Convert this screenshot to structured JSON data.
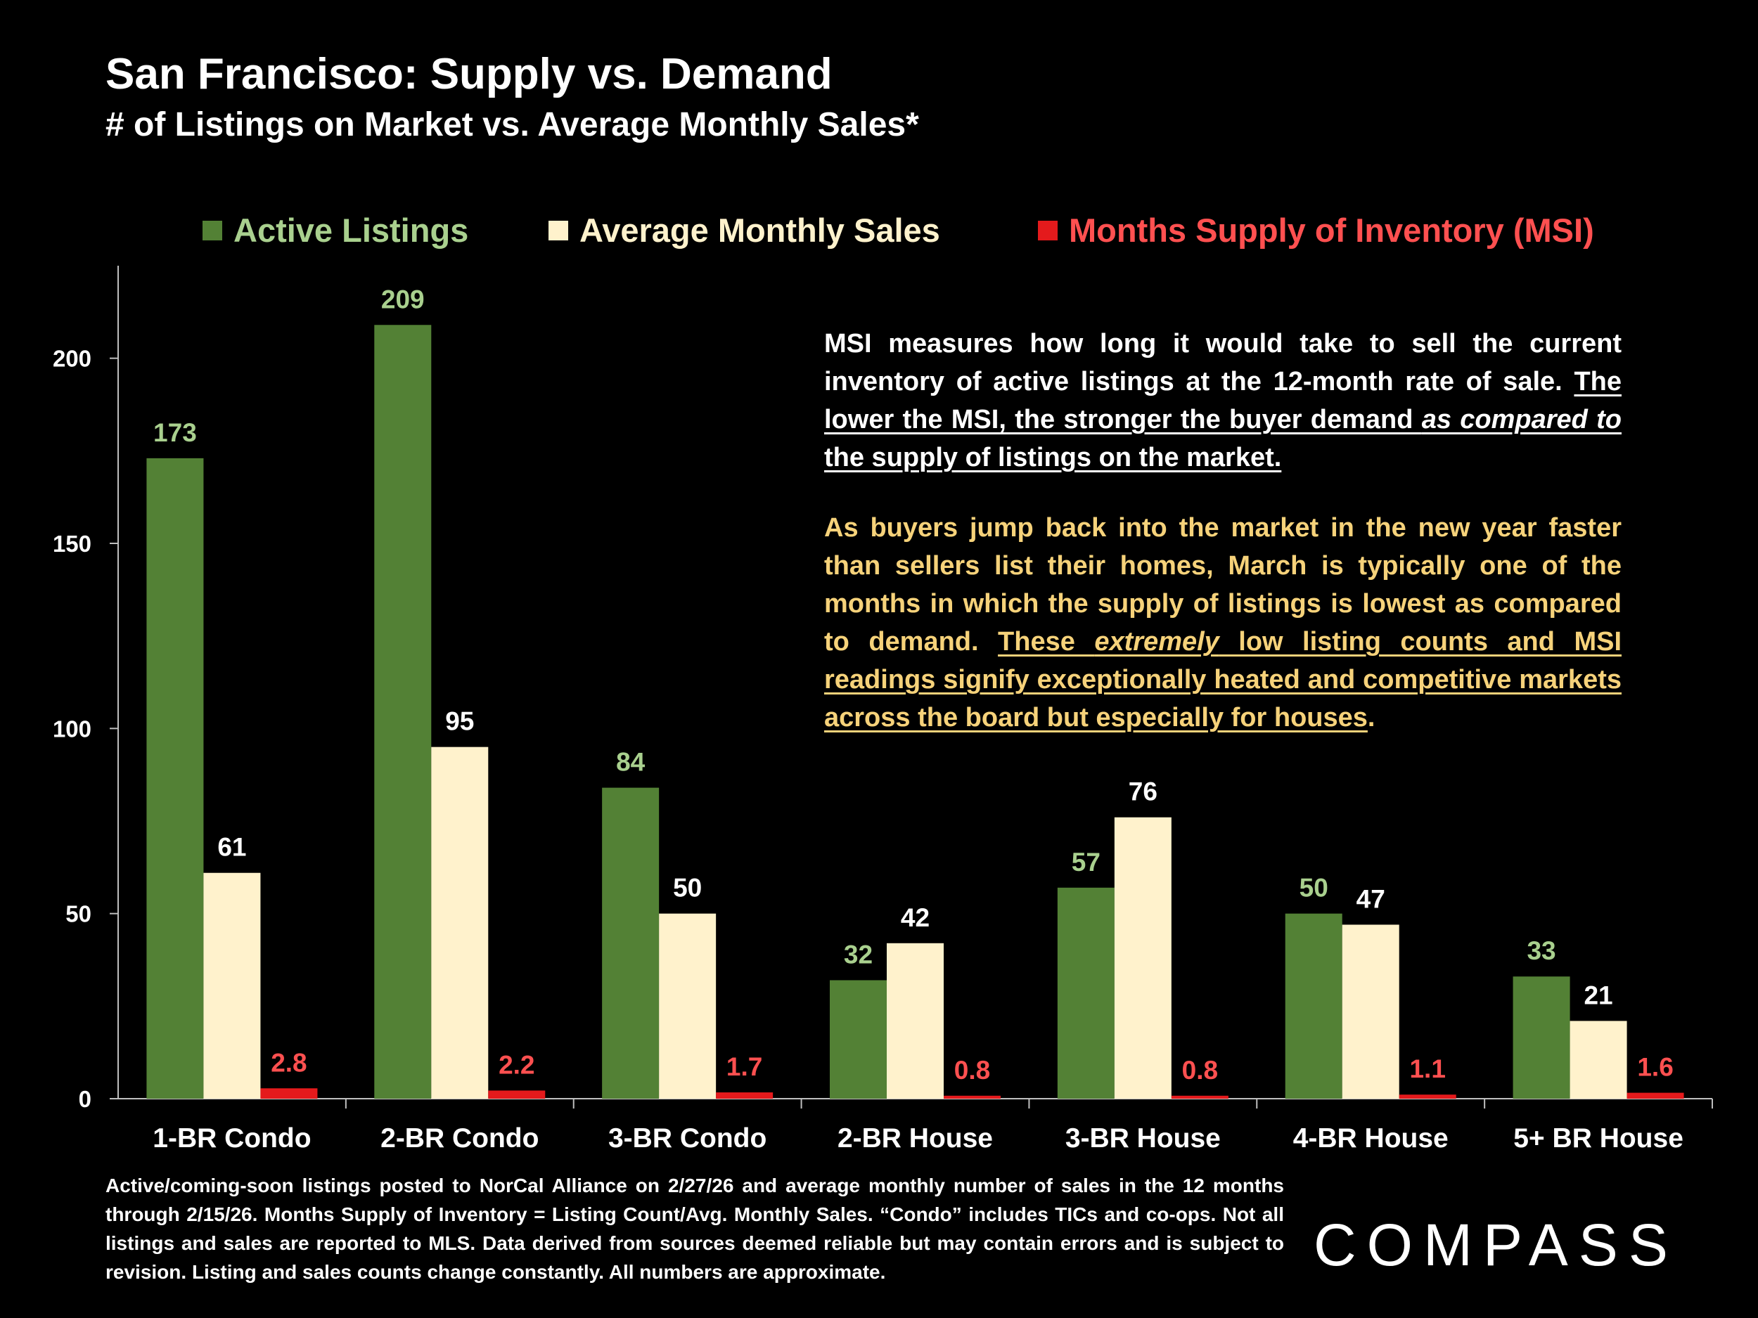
{
  "title": "San Francisco: Supply vs. Demand",
  "subtitle": "# of Listings on Market vs. Average Monthly Sales*",
  "legend": [
    {
      "label": "Active Listings",
      "color": "#538135",
      "text_color": "#a9d08e"
    },
    {
      "label": "Average Monthly Sales",
      "color": "#fff2cc",
      "text_color": "#fff2cc"
    },
    {
      "label": "Months Supply of Inventory (MSI)",
      "color": "#e41a1c",
      "text_color": "#ff5050"
    }
  ],
  "note1": {
    "plain": "MSI measures how long it would take to sell the current inventory of active listings at the 12-month rate of sale. ",
    "u1": "The lower the MSI, the stronger the buyer demand ",
    "ui": "as compared to",
    "u2": " the supply of listings on the market."
  },
  "note2": {
    "plain": "As buyers jump back into the market in the new year faster than sellers list their homes, March is typically one of the months in which the supply of listings is lowest as compared to demand. ",
    "u1": "These ",
    "ui": "extremely",
    "u2": " low listing counts and MSI readings signify exceptionally heated and competitive markets across the board but especially for houses",
    "end": "."
  },
  "footnote": "Active/coming-soon listings posted to NorCal Alliance on 2/27/26 and average monthly number of sales in the 12 months through 2/15/26. Months Supply of Inventory = Listing Count/Avg. Monthly Sales. “Condo” includes TICs and co-ops. Not all listings and sales are reported to MLS. Data derived from sources deemed reliable but may contain errors and is subject to revision. Listing and sales counts change constantly. All numbers are approximate.",
  "logo": "COMPASS",
  "chart_data": {
    "type": "bar",
    "title": "San Francisco: Supply vs. Demand",
    "subtitle": "# of Listings on Market vs. Average Monthly Sales*",
    "categories": [
      "1-BR Condo",
      "2-BR Condo",
      "3-BR Condo",
      "2-BR House",
      "3-BR House",
      "4-BR House",
      "5+ BR House"
    ],
    "series": [
      {
        "name": "Active Listings",
        "color": "#538135",
        "label_color": "#a9d08e",
        "values": [
          173,
          209,
          84,
          32,
          57,
          50,
          33
        ]
      },
      {
        "name": "Average Monthly Sales",
        "color": "#fff2cc",
        "label_color": "#ffffff",
        "values": [
          61,
          95,
          50,
          42,
          76,
          47,
          21
        ]
      },
      {
        "name": "Months Supply of Inventory (MSI)",
        "color": "#e41a1c",
        "label_color": "#ff5050",
        "values": [
          2.8,
          2.2,
          1.7,
          0.8,
          0.8,
          1.1,
          1.6
        ],
        "labels": [
          "2.8",
          "2.2",
          "1.7",
          "0.8",
          "0.8",
          "1.1",
          "1.6"
        ]
      }
    ],
    "yticks": [
      0,
      50,
      100,
      150,
      200
    ],
    "ylim": [
      0,
      225
    ],
    "grid": false,
    "legend_position": "top"
  }
}
